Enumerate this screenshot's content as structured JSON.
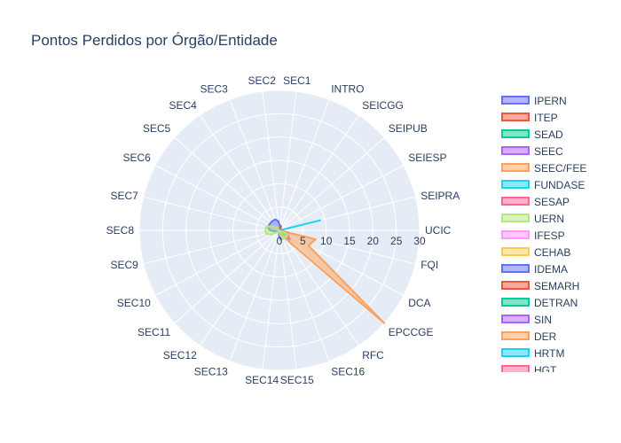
{
  "chart_data": {
    "type": "radar",
    "title": "Pontos Perdidos por Órgão/Entidade",
    "radial_range": [
      0,
      30
    ],
    "radial_ticks": [
      "0",
      "5",
      "10",
      "15",
      "20",
      "25",
      "30"
    ],
    "angle_direction": "counterclockwise",
    "categories": [
      "UCIC",
      "SEIPRA",
      "SEIESP",
      "SEIPUB",
      "SEICGG",
      "INTRO",
      "SEC1",
      "SEC2",
      "SEC3",
      "SEC4",
      "SEC5",
      "SEC6",
      "SEC7",
      "SEC8",
      "SEC9",
      "SEC10",
      "SEC11",
      "SEC12",
      "SEC13",
      "SEC14",
      "SEC15",
      "SEC16",
      "RFC",
      "EPCCGE",
      "DCA",
      "FQI"
    ],
    "legend_position": "right",
    "series": [
      {
        "name": "IPERN",
        "color": "#636efa",
        "values": [
          0,
          0,
          0,
          0,
          0,
          0.5,
          1,
          2,
          2.5,
          2.5,
          2.5,
          2.5,
          2.5,
          2,
          1,
          0.5,
          0.5,
          0,
          0,
          1,
          2,
          1,
          1,
          2,
          2,
          2
        ]
      },
      {
        "name": "ITEP",
        "color": "#ef553b",
        "values": [
          0,
          0,
          0,
          0,
          0.5,
          1,
          0.5,
          0,
          0,
          0,
          0,
          0,
          0,
          0,
          0,
          0,
          0,
          0,
          0,
          0,
          0,
          0,
          1,
          2,
          1,
          1
        ]
      },
      {
        "name": "SEAD",
        "color": "#00cc96",
        "values": [
          0,
          0,
          0,
          0,
          0,
          0,
          0,
          0,
          0,
          0,
          0,
          0,
          0,
          0,
          0,
          0,
          0,
          0,
          0,
          0,
          0,
          0,
          1,
          2,
          1,
          0
        ]
      },
      {
        "name": "SEEC",
        "color": "#ab63fa",
        "values": [
          0,
          0,
          0,
          0,
          0,
          0,
          0,
          0,
          0,
          0,
          0,
          0,
          0,
          0,
          0,
          0,
          0,
          0,
          0,
          0,
          0,
          0,
          1,
          3,
          2,
          0
        ]
      },
      {
        "name": "SEEC/FEE",
        "color": "#ffa15a",
        "values": [
          0,
          0,
          0,
          0,
          0,
          0,
          0,
          0,
          0,
          0,
          0,
          0,
          0,
          0,
          0,
          0,
          0,
          0,
          0,
          0,
          0,
          0,
          2,
          30,
          7,
          8
        ]
      },
      {
        "name": "FUNDASE",
        "color": "#19d3f3",
        "values": [
          0,
          9,
          0,
          0,
          0,
          0,
          0,
          0,
          0,
          0,
          0,
          0,
          0,
          0,
          0,
          0,
          0,
          0,
          0,
          0,
          0,
          0,
          0,
          0,
          0,
          0
        ]
      },
      {
        "name": "SESAP",
        "color": "#ff6692",
        "values": [
          0,
          0,
          0,
          0,
          0,
          0,
          0,
          0,
          0,
          0,
          0,
          0,
          0,
          0,
          0,
          0,
          0,
          0,
          0,
          0,
          0,
          0,
          0,
          0,
          0,
          0
        ]
      },
      {
        "name": "UERN",
        "color": "#b6e880",
        "values": [
          0,
          0,
          0,
          0,
          0,
          0,
          0,
          0,
          0,
          0,
          1,
          2,
          3,
          3,
          3,
          2,
          0.5,
          0,
          0,
          0,
          1,
          2,
          2,
          2,
          2,
          0
        ]
      },
      {
        "name": "IFESP",
        "color": "#ff97ff",
        "values": [
          0,
          0,
          0,
          0,
          0,
          0,
          0,
          0,
          0,
          0,
          0,
          0,
          0,
          0,
          0,
          0,
          0,
          0,
          0,
          0,
          0,
          0,
          0,
          0,
          0,
          0
        ]
      },
      {
        "name": "CEHAB",
        "color": "#fecb52",
        "values": [
          0,
          0,
          0,
          0,
          0,
          0,
          0,
          0,
          0,
          0,
          0,
          0,
          0,
          0,
          0,
          0,
          0,
          0,
          0,
          0,
          0,
          0,
          0,
          0,
          0,
          0
        ]
      },
      {
        "name": "IDEMA",
        "color": "#636efa",
        "values": [
          0,
          0,
          0,
          0,
          0,
          0,
          0,
          0,
          0,
          0,
          0,
          0,
          0,
          0,
          0,
          0,
          0,
          0,
          0,
          0,
          0,
          0,
          0,
          0,
          0,
          0
        ]
      },
      {
        "name": "SEMARH",
        "color": "#ef553b",
        "values": [
          0,
          0,
          0,
          0,
          0,
          0,
          0,
          0,
          0,
          0,
          0,
          0,
          0,
          0,
          0,
          0,
          0,
          0,
          0,
          0,
          0,
          0,
          0,
          0,
          0,
          0
        ]
      },
      {
        "name": "DETRAN",
        "color": "#00cc96",
        "values": [
          0,
          0,
          0,
          0,
          0,
          0,
          0,
          0,
          0,
          0,
          0,
          0,
          0,
          0,
          0,
          0,
          0,
          0,
          0,
          0,
          0,
          0,
          0,
          0,
          0,
          0
        ]
      },
      {
        "name": "SIN",
        "color": "#ab63fa",
        "values": [
          0,
          0,
          0,
          0,
          0,
          0,
          0,
          0,
          0,
          0,
          0,
          0,
          0,
          0,
          0,
          0,
          0,
          0,
          0,
          0,
          0,
          0,
          0,
          0,
          0,
          0
        ]
      },
      {
        "name": "DER",
        "color": "#ffa15a",
        "values": [
          0,
          0,
          0,
          0,
          0,
          0,
          0,
          0,
          0,
          0,
          0,
          0,
          0,
          0,
          0,
          0,
          0,
          0,
          0,
          0,
          0,
          0,
          0,
          0,
          0,
          0
        ]
      },
      {
        "name": "HRTM",
        "color": "#19d3f3",
        "values": [
          0,
          0,
          0,
          0,
          0,
          0,
          0,
          0,
          0,
          0,
          0,
          0,
          0,
          0,
          0,
          0,
          0,
          0,
          0,
          0,
          0,
          0,
          0,
          0,
          0,
          0
        ]
      },
      {
        "name": "HGT",
        "color": "#ff6692",
        "values": [
          0,
          0,
          0,
          0,
          0,
          0,
          0,
          0,
          0,
          0,
          0,
          0,
          0,
          0,
          0,
          0,
          0,
          0,
          0,
          0,
          0,
          0,
          0,
          0,
          0,
          0
        ]
      }
    ]
  }
}
